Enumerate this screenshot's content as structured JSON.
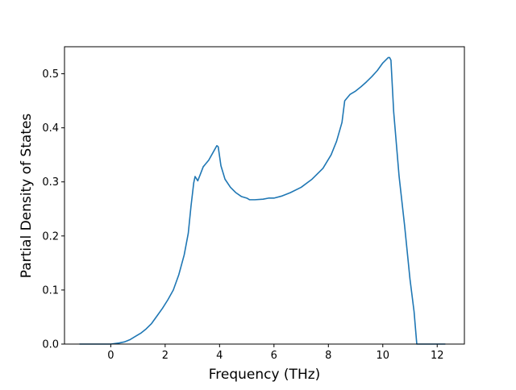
{
  "chart_data": {
    "type": "line",
    "title": "",
    "xlabel": "Frequency (THz)",
    "ylabel": "Partial Density of States",
    "xlim": [
      -1.7,
      13.0
    ],
    "ylim": [
      0.0,
      0.55
    ],
    "x_ticks": [
      0,
      2,
      4,
      6,
      8,
      10,
      12
    ],
    "y_ticks": [
      0.0,
      0.1,
      0.2,
      0.3,
      0.4,
      0.5
    ],
    "x_tick_labels": [
      "0",
      "2",
      "4",
      "6",
      "8",
      "10",
      "12"
    ],
    "y_tick_labels": [
      "0.0",
      "0.1",
      "0.2",
      "0.3",
      "0.4",
      "0.5"
    ],
    "grid": false,
    "legend": "none",
    "series": [
      {
        "color": "#1f77b4",
        "x": [
          -1.15,
          0.0,
          0.3,
          0.5,
          0.7,
          0.9,
          1.1,
          1.3,
          1.5,
          1.7,
          1.9,
          2.1,
          2.3,
          2.5,
          2.7,
          2.85,
          2.95,
          3.05,
          3.1,
          3.2,
          3.3,
          3.4,
          3.6,
          3.8,
          3.9,
          3.95,
          4.05,
          4.2,
          4.4,
          4.6,
          4.8,
          5.0,
          5.1,
          5.3,
          5.6,
          5.8,
          6.0,
          6.3,
          6.6,
          7.0,
          7.4,
          7.8,
          8.1,
          8.3,
          8.5,
          8.6,
          8.8,
          9.0,
          9.2,
          9.4,
          9.6,
          9.8,
          10.0,
          10.1,
          10.2,
          10.25,
          10.3,
          10.4,
          10.6,
          10.8,
          11.0,
          11.15,
          11.25,
          11.4,
          11.8,
          12.3
        ],
        "y": [
          0.0,
          0.0,
          0.002,
          0.004,
          0.008,
          0.014,
          0.02,
          0.028,
          0.038,
          0.052,
          0.066,
          0.082,
          0.1,
          0.128,
          0.165,
          0.205,
          0.255,
          0.298,
          0.31,
          0.302,
          0.315,
          0.328,
          0.34,
          0.358,
          0.367,
          0.365,
          0.33,
          0.305,
          0.29,
          0.28,
          0.273,
          0.27,
          0.267,
          0.267,
          0.268,
          0.27,
          0.27,
          0.274,
          0.28,
          0.29,
          0.305,
          0.325,
          0.35,
          0.375,
          0.41,
          0.45,
          0.462,
          0.468,
          0.476,
          0.485,
          0.495,
          0.506,
          0.52,
          0.525,
          0.53,
          0.53,
          0.525,
          0.43,
          0.31,
          0.22,
          0.12,
          0.06,
          0.0,
          0.0,
          0.0,
          0.0
        ]
      }
    ]
  }
}
